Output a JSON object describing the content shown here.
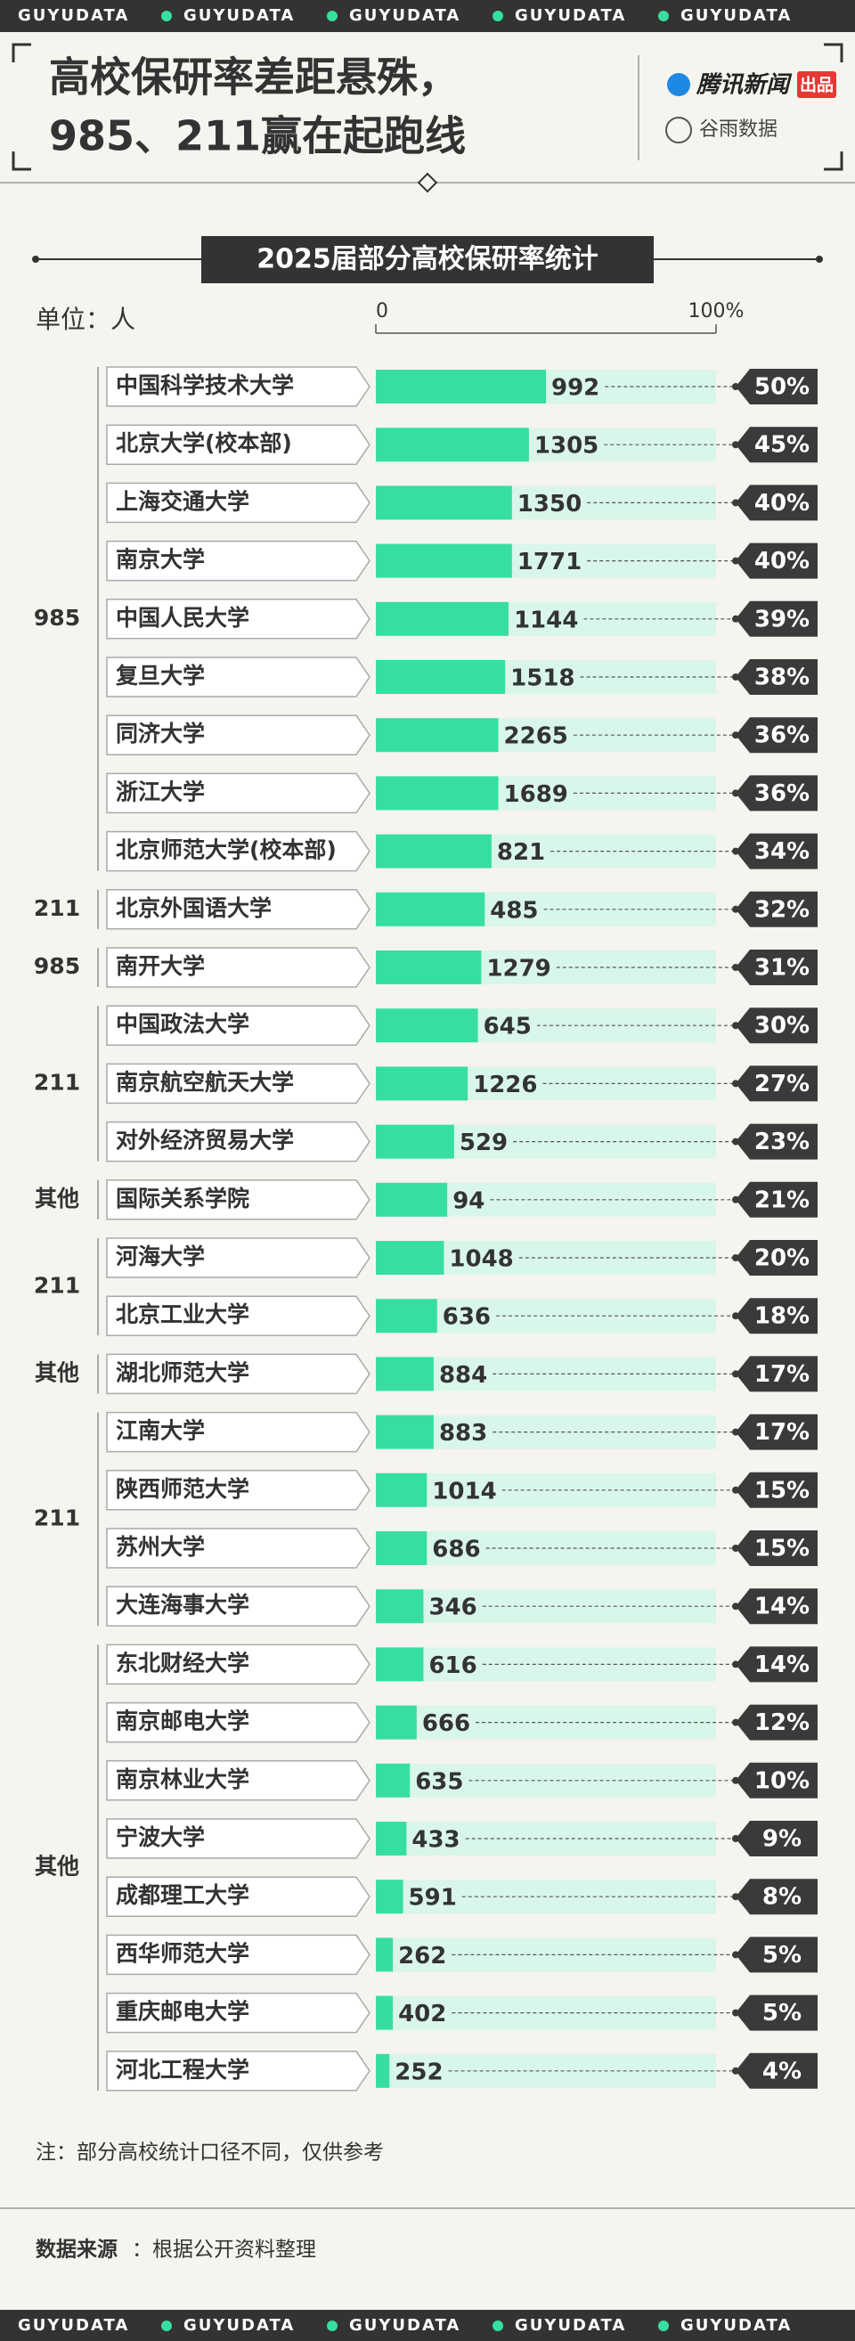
{
  "banner": "GUYUDATA",
  "header": {
    "title_lines": [
      "高校保研率差距悬殊，",
      "985、211赢在起跑线"
    ],
    "publisher": "腾讯新闻",
    "publisher_tag": "出品",
    "partner": "谷雨数据"
  },
  "chart_data": {
    "type": "bar",
    "orientation": "horizontal",
    "title": "2025届部分高校保研率统计",
    "unit": "单位：人",
    "categories": [
      "中国科学技术大学",
      "北京大学(校本部)",
      "上海交通大学",
      "南京大学",
      "中国人民大学",
      "复旦大学",
      "同济大学",
      "浙江大学",
      "北京师范大学(校本部)",
      "北京外国语大学",
      "南开大学",
      "中国政法大学",
      "南京航空航天大学",
      "对外经济贸易大学",
      "国际关系学院",
      "河海大学",
      "北京工业大学",
      "湖北师范大学",
      "江南大学",
      "陕西师范大学",
      "苏州大学",
      "大连海事大学",
      "东北财经大学",
      "南京邮电大学",
      "南京林业大学",
      "宁波大学",
      "成都理工大学",
      "西华师范大学",
      "重庆邮电大学",
      "河北工程大学"
    ],
    "groups": [
      "985",
      "985",
      "985",
      "985",
      "985",
      "985",
      "985",
      "985",
      "985",
      "211",
      "985",
      "211",
      "211",
      "211",
      "其他",
      "211",
      "211",
      "其他",
      "211",
      "211",
      "211",
      "211",
      "其他",
      "其他",
      "其他",
      "其他",
      "其他",
      "其他",
      "其他",
      "其他"
    ],
    "counts": [
      992,
      1305,
      1350,
      1771,
      1144,
      1518,
      2265,
      1689,
      821,
      485,
      1279,
      645,
      1226,
      529,
      94,
      1048,
      636,
      884,
      883,
      1014,
      686,
      346,
      616,
      666,
      635,
      433,
      591,
      262,
      402,
      252
    ],
    "values": [
      50,
      45,
      40,
      40,
      39,
      38,
      36,
      36,
      34,
      32,
      31,
      30,
      27,
      23,
      21,
      20,
      18,
      17,
      17,
      15,
      15,
      14,
      14,
      12,
      10,
      9,
      8,
      5,
      5,
      4
    ],
    "value_labels": [
      "50%",
      "45%",
      "40%",
      "40%",
      "39%",
      "38%",
      "36%",
      "36%",
      "34%",
      "32%",
      "31%",
      "30%",
      "27%",
      "23%",
      "21%",
      "20%",
      "18%",
      "17%",
      "17%",
      "15%",
      "15%",
      "14%",
      "14%",
      "12%",
      "10%",
      "9%",
      "8%",
      "5%",
      "5%",
      "4%"
    ],
    "color": "#36dfa0",
    "track_color": "#d9f6ea",
    "xlim": [
      0,
      100
    ],
    "xticks": [
      0,
      {
        "value": 100,
        "label": "100%"
      }
    ],
    "note": "注：部分高校统计口径不同，仅供参考",
    "source_label": "数据来源",
    "source": "：根据公开资料整理"
  }
}
